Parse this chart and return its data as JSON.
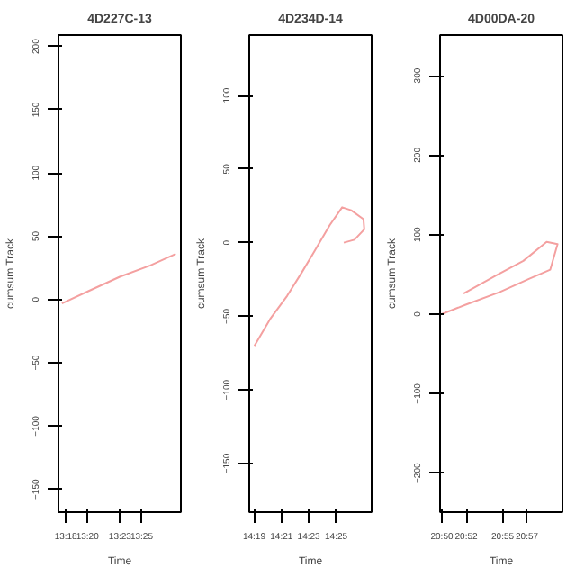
{
  "chart_data": [
    {
      "type": "line",
      "title": "4D227C-13",
      "xlabel": "Time",
      "ylabel": "cumsum Track",
      "xlim": [
        13.2887,
        13.4769
      ],
      "xticks": [
        {
          "value": 13.3,
          "label": "13:18"
        },
        {
          "value": 13.3333,
          "label": "13:20"
        },
        {
          "value": 13.3833,
          "label": "13:23"
        },
        {
          "value": 13.4167,
          "label": "13:25"
        }
      ],
      "ylim": [
        -168,
        209
      ],
      "yticks": [
        -150,
        -100,
        -50,
        0,
        50,
        100,
        150,
        200
      ],
      "grid": false,
      "series": [
        {
          "color": "#f4a0a0",
          "x": [
            13.294,
            13.336,
            13.383,
            13.43,
            13.469
          ],
          "values": [
            -3,
            7,
            18,
            27,
            36
          ]
        }
      ]
    },
    {
      "type": "line",
      "title": "4D234D-14",
      "xlabel": "Time",
      "ylabel": "cumsum Track",
      "xlim": [
        14.3107,
        14.46
      ],
      "xticks": [
        {
          "value": 14.3167,
          "label": "14:19"
        },
        {
          "value": 14.35,
          "label": "14:21"
        },
        {
          "value": 14.3833,
          "label": "14:23"
        },
        {
          "value": 14.4167,
          "label": "14:25"
        }
      ],
      "ylim": [
        -183,
        141
      ],
      "yticks": [
        -150,
        -100,
        -50,
        0,
        50,
        100
      ],
      "grid": false,
      "series": [
        {
          "color": "#f4a0a0",
          "x": [
            14.317,
            14.336,
            14.357,
            14.375,
            14.39,
            14.409,
            14.424,
            14.435,
            14.45,
            14.451,
            14.439,
            14.426
          ],
          "values": [
            -70,
            -52,
            -36,
            -20,
            -6,
            12,
            24,
            22,
            16,
            9,
            2,
            0
          ]
        }
      ]
    },
    {
      "type": "line",
      "title": "4D00DA-20",
      "xlabel": "Time",
      "ylabel": "cumsum Track",
      "xlim": [
        20.8308,
        20.9987
      ],
      "xticks": [
        {
          "value": 20.8333,
          "label": "20:50"
        },
        {
          "value": 20.8667,
          "label": "20:52"
        },
        {
          "value": 20.9167,
          "label": "20:55"
        },
        {
          "value": 20.95,
          "label": "20:57"
        }
      ],
      "ylim": [
        -249,
        351
      ],
      "yticks": [
        -200,
        -100,
        0,
        100,
        200,
        300
      ],
      "grid": false,
      "series": [
        {
          "color": "#f4a0a0",
          "x": [
            20.833,
            20.866,
            20.913,
            20.952,
            20.982,
            20.992,
            20.977,
            20.945,
            20.908,
            20.863
          ],
          "values": [
            0,
            12,
            28,
            44,
            56,
            88,
            91,
            67,
            49,
            26
          ]
        }
      ]
    }
  ]
}
